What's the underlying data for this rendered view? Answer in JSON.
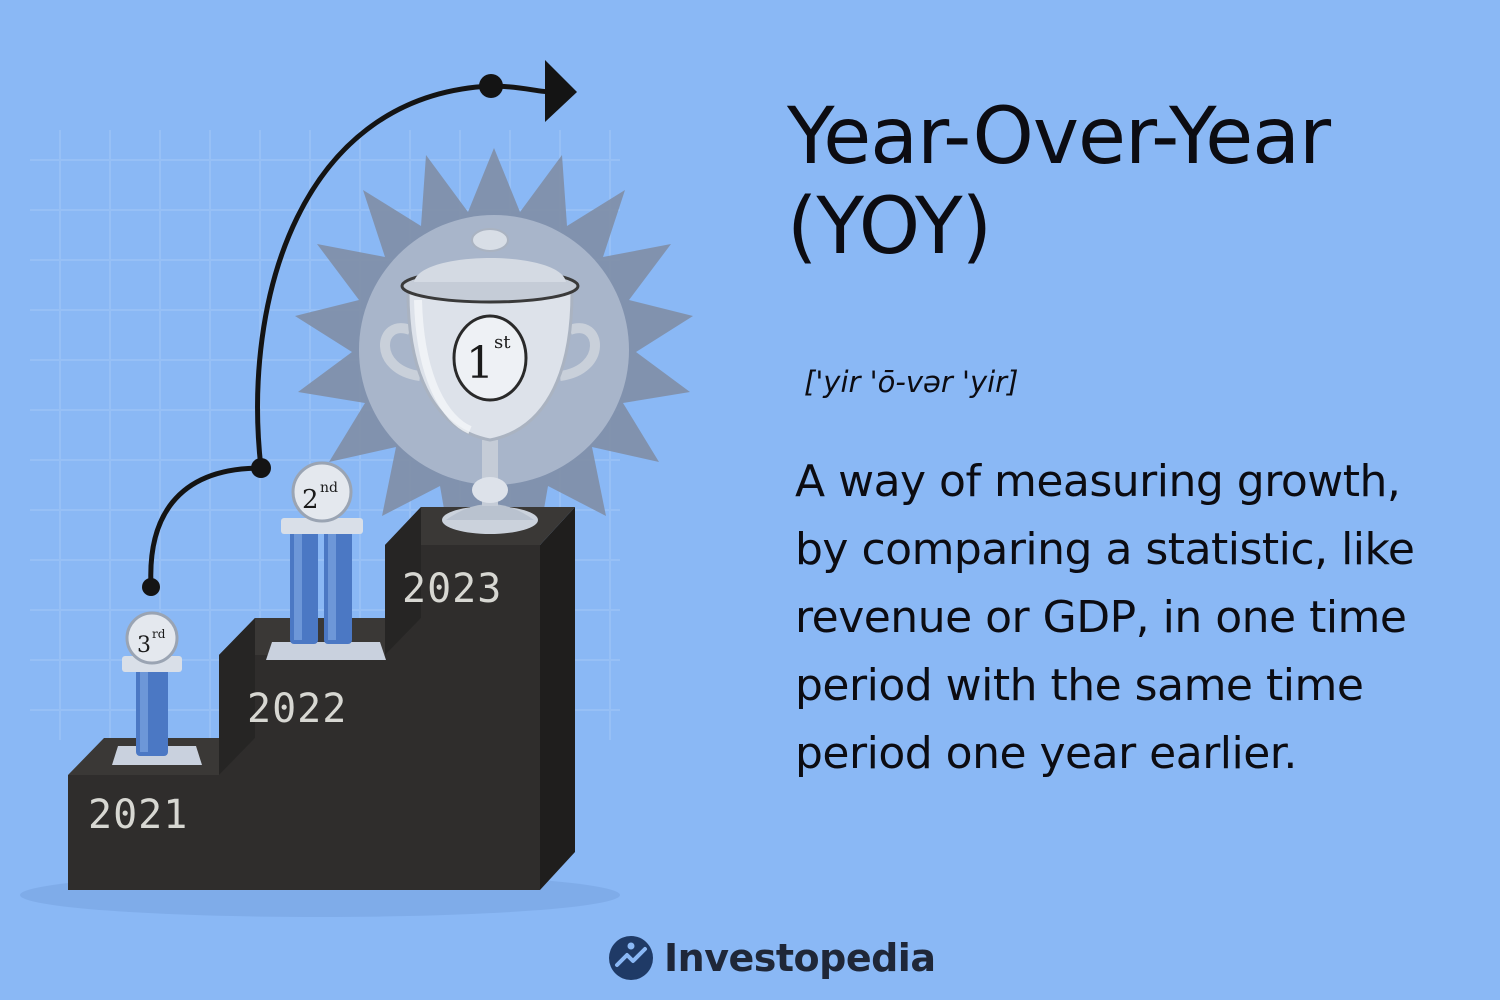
{
  "title": "Year-Over-Year (YOY)",
  "pronunciation": "['yir 'ō-vər 'yir]",
  "definition": "A way of measuring growth, by comparing a statistic, like revenue or GDP, in one time period with the same time period one year earlier.",
  "illustration": {
    "steps": [
      {
        "year": "2021",
        "place": "3",
        "suffix": "rd"
      },
      {
        "year": "2022",
        "place": "2",
        "suffix": "nd"
      },
      {
        "year": "2023",
        "place": "1",
        "suffix": "st"
      }
    ]
  },
  "brand": {
    "name": "Investopedia",
    "logo_icon": "investopedia-logo-icon"
  },
  "colors": {
    "background": "#8ab8f5",
    "text": "#0c0c12",
    "podium": "#2f2d2c",
    "trophy_blue": "#4b78c4",
    "brand_mark": "#1f3a66"
  }
}
